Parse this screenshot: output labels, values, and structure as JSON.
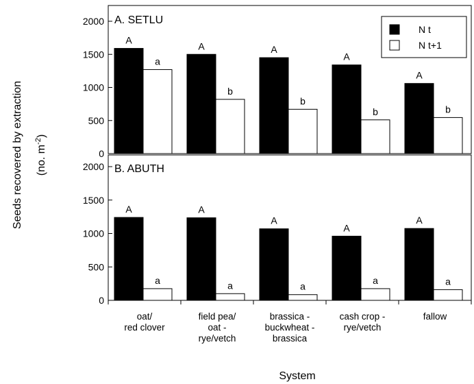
{
  "chart_data": {
    "type": "bar",
    "ylabel": "Seeds recovered by extraction",
    "ylabel_unit": "(no. m",
    "ylabel_unit_exp": "-2",
    "ylabel_unit_close": ")",
    "xlabel": "System",
    "ylim": [
      0,
      2000
    ],
    "yticks": [
      0,
      500,
      1000,
      1500,
      2000
    ],
    "categories": [
      [
        "oat/",
        "red clover"
      ],
      [
        "field pea/",
        "oat -",
        "rye/vetch"
      ],
      [
        "brassica -",
        "buckwheat -",
        "brassica"
      ],
      [
        "cash crop -",
        "rye/vetch"
      ],
      [
        "fallow"
      ]
    ],
    "legend": {
      "position": "top-right",
      "entries": [
        {
          "name": "N t",
          "color": "#000000"
        },
        {
          "name": "N t+1",
          "color": "#ffffff"
        }
      ]
    },
    "panels": [
      {
        "title": "A.  SETLU",
        "series": [
          {
            "name": "N t",
            "values": [
              1590,
              1500,
              1450,
              1340,
              1060
            ],
            "letters": [
              "A",
              "A",
              "A",
              "A",
              "A"
            ]
          },
          {
            "name": "N t+1",
            "values": [
              1270,
              820,
              670,
              510,
              545
            ],
            "letters": [
              "a",
              "b",
              "b",
              "b",
              "b"
            ]
          }
        ]
      },
      {
        "title": "B.  ABUTH",
        "series": [
          {
            "name": "N t",
            "values": [
              1240,
              1235,
              1070,
              960,
              1075
            ],
            "letters": [
              "A",
              "A",
              "A",
              "A",
              "A"
            ]
          },
          {
            "name": "N t+1",
            "values": [
              175,
              100,
              85,
              175,
              160
            ],
            "letters": [
              "a",
              "a",
              "a",
              "a",
              "a"
            ]
          }
        ]
      }
    ]
  }
}
